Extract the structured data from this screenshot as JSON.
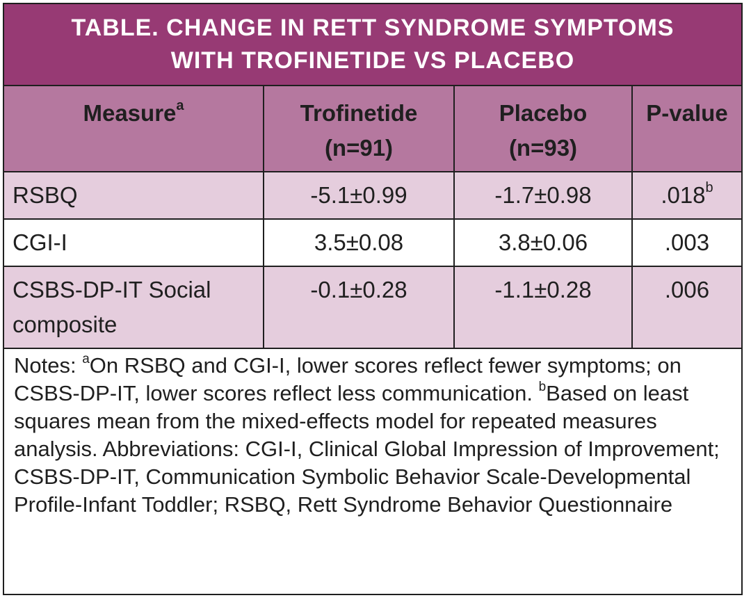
{
  "title": {
    "line1": "TABLE. CHANGE IN RETT SYNDROME SYMPTOMS",
    "line2": "WITH TROFINETIDE VS PLACEBO"
  },
  "header": {
    "measure": "Measure",
    "measure_sup": "a",
    "trofinetide_line1": "Trofinetide",
    "trofinetide_line2": "(n=91)",
    "placebo_line1": "Placebo",
    "placebo_line2": "(n=93)",
    "pvalue": "P-value"
  },
  "rows": [
    {
      "measure": "RSBQ",
      "trofinetide": "-5.1±0.99",
      "placebo": "-1.7±0.98",
      "pvalue": ".018",
      "pvalue_sup": "b"
    },
    {
      "measure": "CGI-I",
      "trofinetide": "3.5±0.08",
      "placebo": "3.8±0.06",
      "pvalue": ".003"
    },
    {
      "measure": "CSBS-DP-IT Social composite",
      "trofinetide": "-0.1±0.28",
      "placebo": "-1.1±0.28",
      "pvalue": ".006"
    }
  ],
  "notes": {
    "prefix": "Notes: ",
    "sup_a": "a",
    "part_a": "On RSBQ and CGI-I, lower scores reflect fewer symptoms; on CSBS-DP-IT, lower scores reflect less communication. ",
    "sup_b": "b",
    "part_b": "Based on least squares mean from the mixed-effects model for repeated measures analysis. Abbreviations: CGI-I, Clinical Global Impression of Improvement; CSBS-DP-IT, Communication Symbolic Behavior Scale-Developmental Profile-Infant Toddler; RSBQ, Rett Syndrome Behavior Questionnaire"
  },
  "colors": {
    "title_bg": "#973a74",
    "header_bg": "#b5789f",
    "shaded_row_bg": "#e5cddd",
    "border": "#1f1f1f"
  }
}
